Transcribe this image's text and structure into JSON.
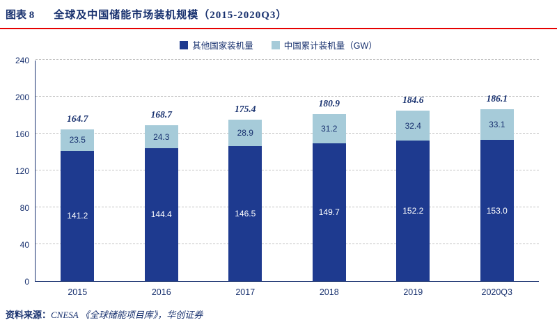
{
  "header": {
    "label": "图表 8",
    "title": "全球及中国储能市场装机规模（2015-2020Q3）"
  },
  "chart_data": {
    "type": "bar",
    "stacked": true,
    "title": "全球及中国储能市场装机规模（2015-2020Q3）",
    "categories": [
      "2015",
      "2016",
      "2017",
      "2018",
      "2019",
      "2020Q3"
    ],
    "series": [
      {
        "name": "其他国家装机量",
        "color": "#1E3A8F",
        "label_color": "#FFFFFF",
        "values": [
          141.2,
          144.4,
          146.5,
          149.7,
          152.2,
          153.0
        ]
      },
      {
        "name": "中国累计装机量（GW）",
        "color": "#A6CBD9",
        "label_color": "#17306E",
        "values": [
          23.5,
          24.3,
          28.9,
          31.2,
          32.4,
          33.1
        ]
      }
    ],
    "totals": [
      164.7,
      168.7,
      175.4,
      180.9,
      184.6,
      186.1
    ],
    "y_ticks": [
      0,
      40,
      80,
      120,
      160,
      200,
      240
    ],
    "ylim": [
      0,
      240
    ],
    "xlabel": "",
    "ylabel": "",
    "legend_position": "top",
    "grid": "dashed-horizontal"
  },
  "footer": {
    "label": "资料来源：",
    "text": "CNESA 《全球储能项目库》，华创证券"
  }
}
